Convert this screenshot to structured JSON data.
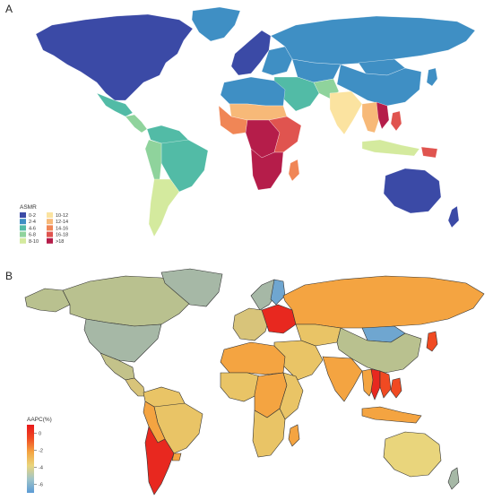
{
  "panel_a": {
    "label": "A",
    "legend": {
      "title": "ASMR",
      "items": [
        {
          "label": "0-2",
          "color": "#3b4aa6"
        },
        {
          "label": "2-4",
          "color": "#3f8fc4"
        },
        {
          "label": "4-6",
          "color": "#52bba6"
        },
        {
          "label": "6-8",
          "color": "#8fd39c"
        },
        {
          "label": "8-10",
          "color": "#d4ea9e"
        },
        {
          "label": "10-12",
          "color": "#fbe3a0"
        },
        {
          "label": "12-14",
          "color": "#f7b978"
        },
        {
          "label": "14-16",
          "color": "#f08656"
        },
        {
          "label": "16-18",
          "color": "#e0544f"
        },
        {
          "label": ">18",
          "color": "#b51d4a"
        }
      ]
    },
    "region_values": {
      "north-america": "0-2",
      "greenland": "2-4",
      "mexico": "4-6",
      "central-america": "6-8",
      "south-america-north": "4-6",
      "brazil": "4-6",
      "south-america-west": "6-8",
      "southern-cone": "8-10",
      "western-europe": "0-2",
      "eastern-europe": "2-4",
      "russia": "2-4",
      "central-asia": "2-4",
      "china": "2-4",
      "mongolia": "2-4",
      "middle-east": "4-6",
      "north-africa": "2-4",
      "sahel": "12-14",
      "west-africa": "14-16",
      "central-africa": ">18",
      "east-africa": "16-18",
      "southern-africa": ">18",
      "madagascar": "14-16",
      "india": "10-12",
      "south-asia-west": "6-8",
      "southeast-asia": "12-14",
      "cambodia-vietnam": ">18",
      "indonesia": "8-10",
      "philippines": "16-18",
      "papua-new-guinea": "16-18",
      "australia": "0-2",
      "new-zealand": "0-2",
      "japan": "2-4"
    }
  },
  "panel_b": {
    "label": "B",
    "legend": {
      "title": "AAPC(%)",
      "ticks": [
        "0",
        "-2",
        "-4",
        "-6"
      ],
      "range": [
        -7,
        1
      ],
      "gradient": [
        "#5b9bd5",
        "#a0c4c8",
        "#e9d57c",
        "#f4a441",
        "#f04a22",
        "#e8191b"
      ]
    },
    "region_colors": {
      "canada": "#b9c18f",
      "alaska": "#b9c18f",
      "greenland": "#a6b8a6",
      "usa": "#a6b8a6",
      "mexico": "#c3c28a",
      "central-america": "#d8c47a",
      "south-america-north": "#e9c466",
      "brazil": "#e9c466",
      "peru-bolivia": "#f4a441",
      "argentina-chile": "#e8281f",
      "uruguay": "#f4a441",
      "western-europe": "#d8c47a",
      "scandinavia": "#a6b8a6",
      "finland": "#6fa6d0",
      "eastern-europe": "#e8281f",
      "russia": "#f4a441",
      "kazakhstan": "#e9c466",
      "mongolia": "#6fa6d0",
      "china": "#b9c18f",
      "middle-east": "#e9c466",
      "india": "#f4a441",
      "north-africa": "#f4a441",
      "west-africa": "#e9c466",
      "central-africa": "#f4a441",
      "east-africa": "#e9c466",
      "southern-africa": "#e9c466",
      "madagascar": "#f4a441",
      "southeast-asia": "#f4a441",
      "thailand": "#e8281f",
      "vietnam-cambodia": "#f04a22",
      "indonesia": "#f4a441",
      "philippines": "#f04a22",
      "japan": "#f04a22",
      "australia": "#e9d57c",
      "new-zealand": "#a6b8a6"
    }
  }
}
